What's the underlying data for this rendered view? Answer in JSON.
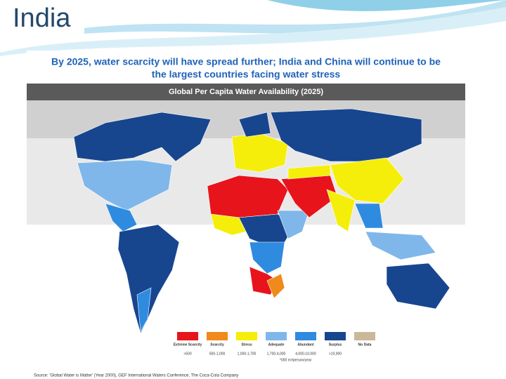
{
  "slide": {
    "title": "India"
  },
  "figure": {
    "heading": [
      "By 2025, water scarcity will have spread further; India and China will continue to be",
      "the largest countries facing water stress"
    ],
    "map_title": "Global Per Capita Water Availability (2025)",
    "legend": [
      {
        "label": "Extreme Scarcity",
        "range": "<500",
        "color": "#e8141b"
      },
      {
        "label": "Scarcity",
        "range": "500-1,000",
        "color": "#f08a1c"
      },
      {
        "label": "Stress",
        "range": "1,000-1,700",
        "color": "#f5ee0a"
      },
      {
        "label": "Adequate",
        "range": "1,700-4,000",
        "color": "#7fb7ea"
      },
      {
        "label": "Abundant",
        "range": "4,000-10,000",
        "color": "#2f8be0"
      },
      {
        "label": "Surplus",
        "range": ">10,000",
        "color": "#17468f"
      },
      {
        "label": "No Data",
        "range": "",
        "color": "#c9b99a"
      }
    ],
    "unit_note": "*000 m³/person/year",
    "source": "Source: 'Global Water is Matter' (Year 2000), GEF International Waters Conference, The Coca-Cola Company"
  }
}
